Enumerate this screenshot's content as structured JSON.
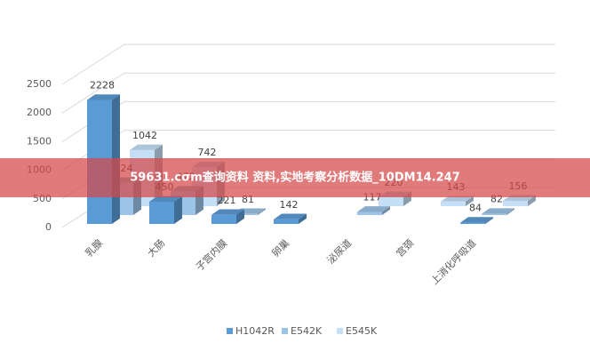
{
  "chart_data": {
    "type": "bar3d",
    "categories": [
      "乳腺",
      "大肠",
      "子宫内膜",
      "卵巢",
      "泌尿道",
      "宫颈",
      "上消化呼吸道"
    ],
    "series": [
      {
        "name": "H1042R",
        "color": "#5b9bd5",
        "values": [
          2228,
          450,
          221,
          142,
          null,
          null,
          84
        ]
      },
      {
        "name": "E542K",
        "color": "#9dc3e6",
        "values": [
          624,
          472,
          81,
          null,
          117,
          null,
          82
        ]
      },
      {
        "name": "E545K",
        "color": "#c5dff7",
        "values": [
          1042,
          742,
          null,
          null,
          220,
          143,
          156
        ]
      }
    ],
    "ylim": [
      0,
      2500
    ],
    "yticks": [
      0,
      500,
      1000,
      1500,
      2000,
      2500
    ],
    "grid": true,
    "legend": "bottom"
  },
  "banner": {
    "text": "59631.cσm查询资料 资料,实地考察分析数据_10DM14.247"
  }
}
